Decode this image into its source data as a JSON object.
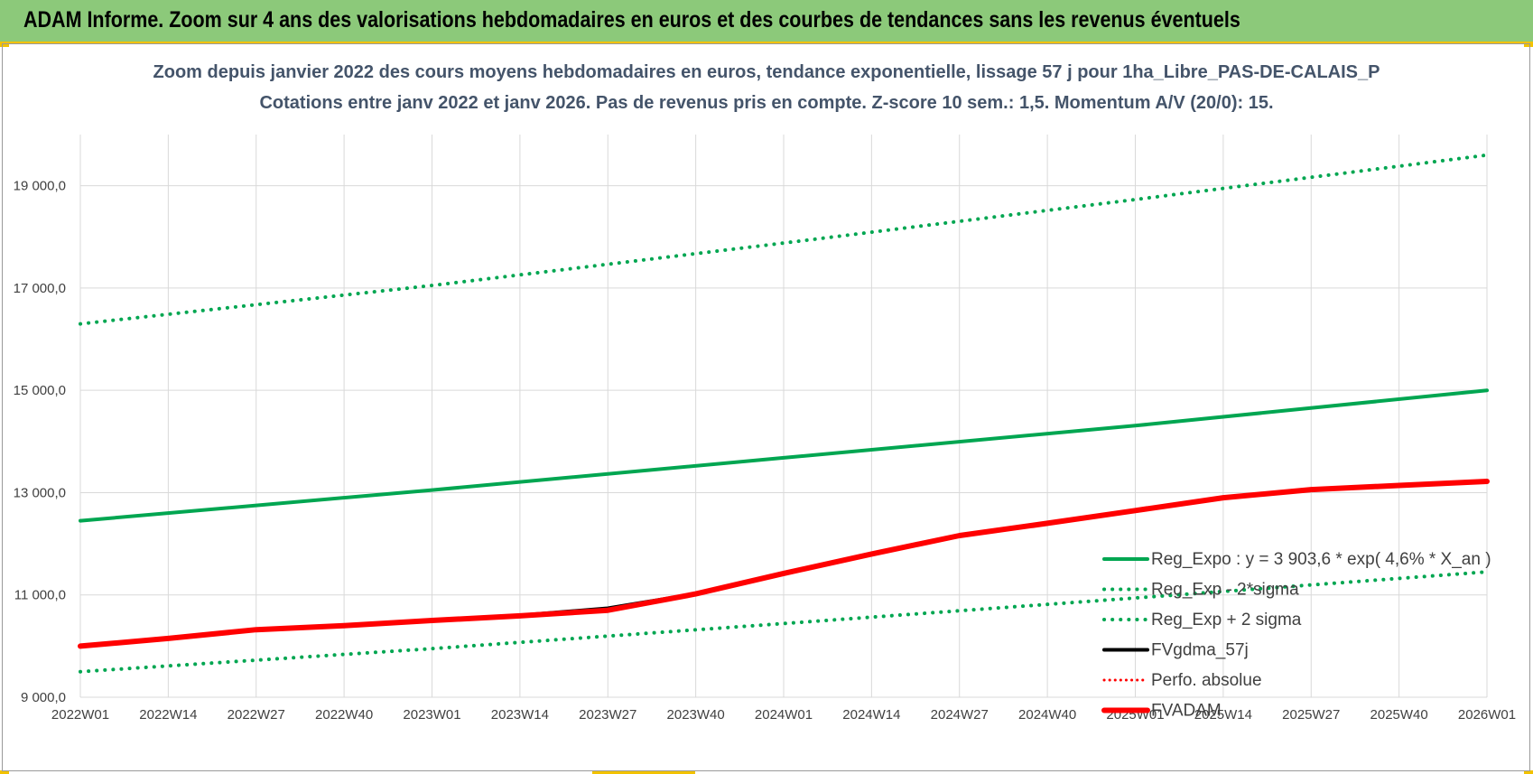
{
  "banner": {
    "title": "ADAM Informe. Zoom sur 4 ans des valorisations hebdomadaires en euros et des courbes de tendances sans les revenus éventuels"
  },
  "chart_data": {
    "type": "line",
    "title": "Zoom depuis janvier 2022 des cours moyens hebdomadaires en euros, tendance exponentielle, lissage 57 j pour 1ha_Libre_PAS-DE-CALAIS_P",
    "subtitle": "Cotations entre janv 2022 et janv 2026. Pas de revenus pris en compte. Z-score 10 sem.: 1,5. Momentum A/V (20/0): 15.",
    "xlabel": "",
    "ylabel": "",
    "x_ticks": [
      "2022W01",
      "2022W14",
      "2022W27",
      "2022W40",
      "2023W01",
      "2023W14",
      "2023W27",
      "2023W40",
      "2024W01",
      "2024W14",
      "2024W27",
      "2024W40",
      "2025W01",
      "2025W14",
      "2025W27",
      "2025W40",
      "2026W01"
    ],
    "y_ticks": [
      "9 000,0",
      "11 000,0",
      "13 000,0",
      "15 000,0",
      "17 000,0",
      "19 000,0"
    ],
    "ylim": [
      9000,
      20000
    ],
    "grid": true,
    "legend_position": "right",
    "colors": {
      "green": "#00a651",
      "black": "#000000",
      "red": "#ff0000",
      "grid": "#d9d9d9"
    },
    "series": [
      {
        "name": "Reg_Expo : y = 3 903,6 * exp( 4,6% *  X_an )",
        "style": "solid-green",
        "points": [
          [
            0,
            12450
          ],
          [
            4,
            13050
          ],
          [
            8,
            13680
          ],
          [
            12,
            14310
          ],
          [
            16,
            15000
          ]
        ]
      },
      {
        "name": "Reg_Exp - 2*sigma",
        "style": "dotted-green",
        "points": [
          [
            0,
            9500
          ],
          [
            4,
            9950
          ],
          [
            8,
            10440
          ],
          [
            12,
            10940
          ],
          [
            16,
            11450
          ]
        ]
      },
      {
        "name": "Reg_Exp + 2 sigma",
        "style": "dotted-green",
        "points": [
          [
            0,
            16300
          ],
          [
            4,
            17050
          ],
          [
            8,
            17880
          ],
          [
            12,
            18730
          ],
          [
            16,
            19600
          ]
        ]
      },
      {
        "name": "FVgdma_57j",
        "style": "solid-black",
        "points": [
          [
            0,
            10000
          ],
          [
            1,
            10150
          ],
          [
            2,
            10320
          ],
          [
            3,
            10400
          ],
          [
            4,
            10500
          ],
          [
            5,
            10600
          ],
          [
            6,
            10740
          ],
          [
            6.5,
            10880
          ],
          [
            7,
            11020
          ],
          [
            8,
            11420
          ],
          [
            9,
            11800
          ],
          [
            10,
            12170
          ],
          [
            11,
            12400
          ],
          [
            12,
            12650
          ],
          [
            13,
            12900
          ],
          [
            14,
            13060
          ],
          [
            15,
            13140
          ],
          [
            16,
            13220
          ]
        ]
      },
      {
        "name": "Perfo. absolue",
        "style": "dotted-red",
        "points": []
      },
      {
        "name": "FVADAM",
        "style": "solid-red",
        "points": [
          [
            0,
            10000
          ],
          [
            1,
            10150
          ],
          [
            2,
            10320
          ],
          [
            3,
            10400
          ],
          [
            4,
            10500
          ],
          [
            5,
            10590
          ],
          [
            6,
            10700
          ],
          [
            6.5,
            10860
          ],
          [
            7,
            11020
          ],
          [
            8,
            11420
          ],
          [
            9,
            11800
          ],
          [
            10,
            12160
          ],
          [
            11,
            12400
          ],
          [
            12,
            12650
          ],
          [
            13,
            12900
          ],
          [
            14,
            13060
          ],
          [
            15,
            13140
          ],
          [
            16,
            13220
          ]
        ]
      }
    ]
  }
}
